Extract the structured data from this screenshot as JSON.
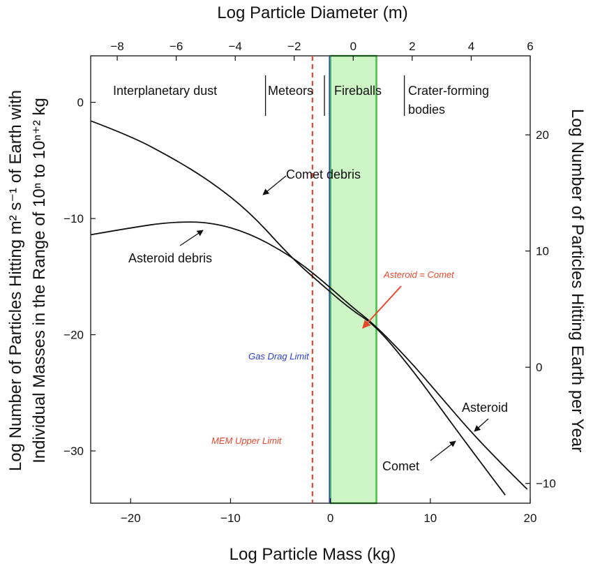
{
  "chart_data": {
    "type": "line",
    "title": "",
    "xlabel_bottom": "Log Particle Mass (kg)",
    "xlabel_top": "Log Particle Diameter (m)",
    "ylabel_left_line1": "Log Number of Particles Hitting m² s⁻¹ of Earth with",
    "ylabel_left_line2": "Individual Masses in the Range of 10ⁿ to 10ⁿ⁺² kg",
    "ylabel_right": "Log Number of Particles Hitting Earth per Year",
    "xlim": [
      -24,
      20
    ],
    "ylim": [
      -34.5,
      4
    ],
    "x_top_lim": [
      -8.9,
      6
    ],
    "y_right_lim": [
      -11.7,
      26.8
    ],
    "x_ticks": [
      -20,
      -10,
      0,
      10,
      20
    ],
    "y_ticks": [
      0,
      -10,
      -20,
      -30
    ],
    "x_top_ticks": [
      -8,
      -6,
      -4,
      -2,
      0,
      2,
      4,
      6
    ],
    "y_right_ticks": [
      20,
      10,
      0,
      -10
    ],
    "x_tick_labels": [
      "−20",
      "−10",
      "0",
      "10",
      "20"
    ],
    "y_tick_labels": [
      "0",
      "−10",
      "−20",
      "−30"
    ],
    "x_top_tick_labels": [
      "−8",
      "−6",
      "−4",
      "−2",
      "0",
      "2",
      "4",
      "6"
    ],
    "y_right_tick_labels": [
      "20",
      "10",
      "0",
      "−10"
    ],
    "series": [
      {
        "label": "Comet debris",
        "x": [
          -24,
          -20,
          -16,
          -12,
          -8,
          -4,
          -1,
          2,
          4.5,
          8,
          11,
          14,
          17.5
        ],
        "y": [
          -1.6,
          -2.9,
          -4.7,
          -6.8,
          -9.5,
          -13.3,
          -15.6,
          -17.8,
          -19.2,
          -22.8,
          -26.3,
          -29.8,
          -33.8
        ]
      },
      {
        "label": "Asteroid debris",
        "x": [
          -24,
          -20,
          -16,
          -12,
          -8,
          -4,
          -1,
          2,
          4.5,
          8,
          11,
          14,
          17,
          19.7
        ],
        "y": [
          -11.4,
          -10.8,
          -10.3,
          -10.3,
          -11.3,
          -13.2,
          -15.2,
          -17.5,
          -19.2,
          -22.3,
          -25.3,
          -28.3,
          -31.0,
          -33.3
        ]
      }
    ],
    "regions": {
      "dust": "Interplanetary dust",
      "meteors": "Meteors",
      "fireballs": "Fireballs",
      "crater_line1": "Crater-forming",
      "crater_line2": "bodies"
    },
    "region_dividers_x": [
      -6.5,
      -0.6,
      7.4
    ],
    "fireball_band": {
      "x": [
        0,
        4.6
      ],
      "color": "#cdf5c6",
      "edge": "#44c043"
    },
    "gas_drag_limit_x": -0.1,
    "mem_upper_limit_x": -1.8,
    "colors": {
      "red": "#e8472c",
      "blue": "#2b3fd6",
      "green_edge": "#44c043"
    },
    "annotations": {
      "comet_debris": "Comet debris",
      "asteroid_debris": "Asteroid debris",
      "asteroid_eq_comet": "Asteroid = Comet",
      "gas_drag_limit": "Gas Drag Limit",
      "mem_upper_limit": "MEM Upper Limit",
      "asteroid": "Asteroid",
      "comet": "Comet"
    }
  }
}
